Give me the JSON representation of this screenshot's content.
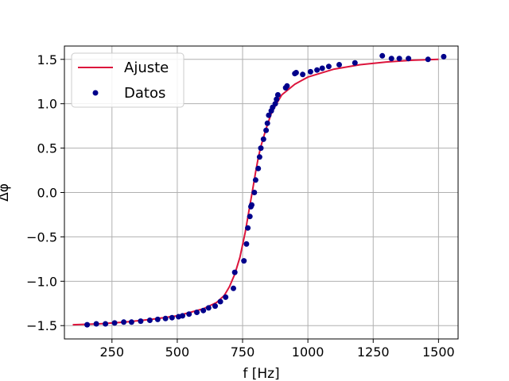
{
  "chart_data": {
    "type": "scatter",
    "title": "",
    "xlabel": "f [Hz]",
    "ylabel": "Δφ",
    "xlim": [
      68,
      1575
    ],
    "ylim": [
      -1.65,
      1.65
    ],
    "xticks": [
      250,
      500,
      750,
      1000,
      1250,
      1500
    ],
    "xtick_labels": [
      "250",
      "500",
      "750",
      "1000",
      "1250",
      "1500"
    ],
    "yticks": [
      -1.5,
      -1.0,
      -0.5,
      0.0,
      0.5,
      1.0,
      1.5
    ],
    "ytick_labels": [
      "−1.5",
      "−1.0",
      "−0.5",
      "0.0",
      "0.5",
      "1.0",
      "1.5"
    ],
    "grid": true,
    "legend": {
      "position": "top-left",
      "entries": [
        "Ajuste",
        "Datos"
      ]
    },
    "colors": {
      "fit": "#dc143c",
      "data": "#00008b"
    },
    "series": [
      {
        "name": "Ajuste",
        "kind": "line",
        "x": [
          100,
          200,
          300,
          400,
          500,
          550,
          600,
          650,
          680,
          700,
          720,
          740,
          760,
          770,
          780,
          790,
          800,
          810,
          820,
          840,
          860,
          880,
          900,
          950,
          1000,
          1100,
          1200,
          1300,
          1400,
          1500
        ],
        "y": [
          -1.49,
          -1.48,
          -1.46,
          -1.43,
          -1.39,
          -1.35,
          -1.31,
          -1.24,
          -1.16,
          -1.06,
          -0.92,
          -0.73,
          -0.45,
          -0.28,
          -0.11,
          0.06,
          0.23,
          0.39,
          0.52,
          0.72,
          0.89,
          1.0,
          1.1,
          1.22,
          1.3,
          1.39,
          1.44,
          1.47,
          1.49,
          1.5
        ]
      },
      {
        "name": "Datos",
        "kind": "scatter",
        "x": [
          155,
          190,
          225,
          260,
          295,
          325,
          360,
          395,
          425,
          455,
          480,
          505,
          520,
          545,
          575,
          600,
          620,
          645,
          665,
          685,
          715,
          720,
          755,
          765,
          770,
          778,
          782,
          785,
          795,
          800,
          810,
          815,
          820,
          830,
          840,
          845,
          850,
          860,
          865,
          875,
          880,
          885,
          915,
          920,
          950,
          955,
          980,
          1010,
          1035,
          1055,
          1080,
          1120,
          1180,
          1285,
          1320,
          1350,
          1385,
          1460,
          1520
        ],
        "y": [
          -1.49,
          -1.48,
          -1.48,
          -1.47,
          -1.46,
          -1.46,
          -1.45,
          -1.44,
          -1.43,
          -1.42,
          -1.41,
          -1.4,
          -1.39,
          -1.37,
          -1.35,
          -1.33,
          -1.3,
          -1.28,
          -1.23,
          -1.18,
          -1.08,
          -0.9,
          -0.77,
          -0.58,
          -0.4,
          -0.27,
          -0.16,
          -0.14,
          0.0,
          0.14,
          0.27,
          0.4,
          0.5,
          0.6,
          0.7,
          0.78,
          0.87,
          0.92,
          0.96,
          1.0,
          1.05,
          1.1,
          1.18,
          1.2,
          1.34,
          1.35,
          1.33,
          1.36,
          1.38,
          1.4,
          1.42,
          1.44,
          1.46,
          1.54,
          1.51,
          1.51,
          1.51,
          1.5,
          1.53
        ]
      }
    ]
  }
}
